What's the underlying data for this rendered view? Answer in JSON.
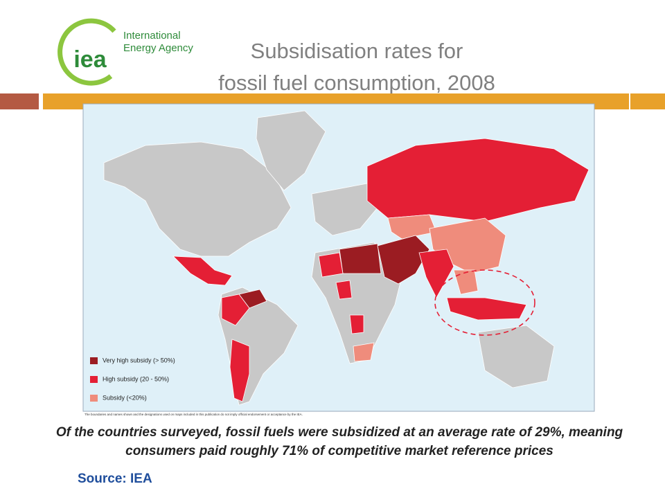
{
  "logo": {
    "mark": "iea",
    "name": [
      "International",
      "Energy Agency"
    ]
  },
  "title": [
    "Subsidisation rates for",
    "fossil fuel consumption, 2008"
  ],
  "legend": [
    {
      "label": "Very high subsidy (> 50%)",
      "color": "#9b1c22"
    },
    {
      "label": "High subsidy (20 - 50%)",
      "color": "#e41f35"
    },
    {
      "label": "Subsidy (<20%)",
      "color": "#ef8c7c"
    }
  ],
  "disclaimer": "The boundaries and names shown and the designations used on maps included in this publication do not imply official endorsement or acceptance by the IEA.",
  "caption": [
    "Of the countries surveyed, fossil fuels were subsidized at an average rate of 29%, meaning",
    "consumers paid roughly 71% of competitive market reference prices"
  ],
  "source": "Source: IEA"
}
